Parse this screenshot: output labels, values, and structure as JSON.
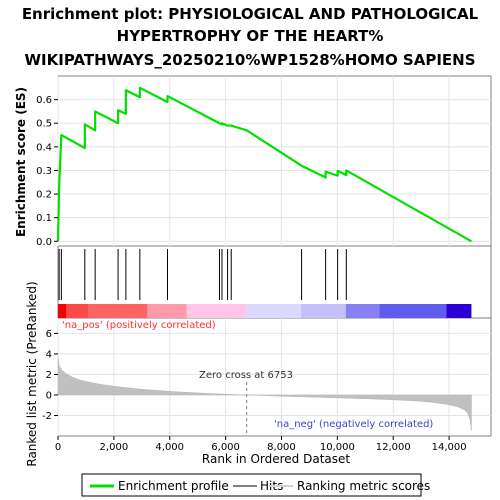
{
  "chart_data": {
    "type": "line",
    "title_lines": [
      "Enrichment plot: PHYSIOLOGICAL AND PATHOLOGICAL",
      "HYPERTROPHY OF THE HEART%",
      "WIKIPATHWAYS_20250210%WP1528%HOMO SAPIENS"
    ],
    "xlabel": "Rank in Ordered Dataset",
    "ylabel_top": "Enrichment score (ES)",
    "ylabel_bottom": "Ranked list metric (PreRanked)",
    "xlim": [
      0,
      15500
    ],
    "x_ticks": [
      "0",
      "2,000",
      "4,000",
      "6,000",
      "8,000",
      "10,000",
      "12,000",
      "14,000"
    ],
    "x_tick_values": [
      0,
      2000,
      4000,
      6000,
      8000,
      10000,
      12000,
      14000
    ],
    "es_ylim": [
      -0.02,
      0.7
    ],
    "es_ticks": [
      "0.0",
      "0.1",
      "0.2",
      "0.3",
      "0.4",
      "0.5",
      "0.6"
    ],
    "es_tick_values": [
      0,
      0.1,
      0.2,
      0.3,
      0.4,
      0.5,
      0.6
    ],
    "metric_ylim": [
      -4,
      7.5
    ],
    "metric_ticks": [
      "-2",
      "0",
      "2",
      "4",
      "6"
    ],
    "metric_tick_values": [
      -2,
      0,
      2,
      4,
      6
    ],
    "total_ranks": 14800,
    "zero_cross_rank": 6753,
    "zero_cross_label": "Zero cross at 6753",
    "pos_label": "'na_pos' (positively correlated)",
    "neg_label": "'na_neg' (negatively correlated)",
    "hits": [
      40,
      120,
      960,
      1330,
      2150,
      2430,
      2930,
      3920,
      5780,
      5870,
      6070,
      6200,
      8720,
      9580,
      10010,
      10320
    ],
    "es_profile": [
      [
        0,
        0
      ],
      [
        40,
        0.23
      ],
      [
        120,
        0.45
      ],
      [
        960,
        0.395
      ],
      [
        960,
        0.495
      ],
      [
        1330,
        0.47
      ],
      [
        1330,
        0.55
      ],
      [
        2150,
        0.5
      ],
      [
        2150,
        0.555
      ],
      [
        2430,
        0.54
      ],
      [
        2430,
        0.64
      ],
      [
        2930,
        0.61
      ],
      [
        2930,
        0.65
      ],
      [
        3920,
        0.59
      ],
      [
        3920,
        0.615
      ],
      [
        5780,
        0.5
      ],
      [
        5870,
        0.495
      ],
      [
        5870,
        0.5
      ],
      [
        6070,
        0.49
      ],
      [
        6200,
        0.49
      ],
      [
        6753,
        0.47
      ],
      [
        8720,
        0.32
      ],
      [
        9580,
        0.27
      ],
      [
        9580,
        0.295
      ],
      [
        10010,
        0.278
      ],
      [
        10010,
        0.298
      ],
      [
        10320,
        0.28
      ],
      [
        10320,
        0.3
      ],
      [
        14800,
        0.0
      ]
    ],
    "metric_profile": [
      [
        0,
        3.6
      ],
      [
        50,
        2.8
      ],
      [
        150,
        2.4
      ],
      [
        300,
        2.05
      ],
      [
        500,
        1.75
      ],
      [
        800,
        1.45
      ],
      [
        1200,
        1.2
      ],
      [
        1600,
        1.0
      ],
      [
        2000,
        0.85
      ],
      [
        2500,
        0.7
      ],
      [
        3000,
        0.55
      ],
      [
        3500,
        0.45
      ],
      [
        4000,
        0.35
      ],
      [
        4500,
        0.27
      ],
      [
        5000,
        0.2
      ],
      [
        5500,
        0.13
      ],
      [
        6000,
        0.07
      ],
      [
        6753,
        0.0
      ],
      [
        7500,
        -0.07
      ],
      [
        8000,
        -0.12
      ],
      [
        9000,
        -0.2
      ],
      [
        10000,
        -0.28
      ],
      [
        11000,
        -0.37
      ],
      [
        12000,
        -0.47
      ],
      [
        12800,
        -0.58
      ],
      [
        13400,
        -0.72
      ],
      [
        13900,
        -0.9
      ],
      [
        14300,
        -1.15
      ],
      [
        14550,
        -1.45
      ],
      [
        14680,
        -1.85
      ],
      [
        14750,
        -2.4
      ],
      [
        14800,
        -3.5
      ]
    ],
    "heat_bands": [
      [
        0,
        300,
        "#f80000"
      ],
      [
        300,
        1100,
        "#fc4a4a"
      ],
      [
        1100,
        3200,
        "#fe6464"
      ],
      [
        3200,
        4600,
        "#ff9aab"
      ],
      [
        4600,
        6753,
        "#ffc6ea"
      ],
      [
        6753,
        8700,
        "#dad8fb"
      ],
      [
        8700,
        10300,
        "#c6c0fa"
      ],
      [
        10300,
        11500,
        "#8880f0"
      ],
      [
        11500,
        13900,
        "#605cee"
      ],
      [
        13900,
        14800,
        "#2c00d2"
      ]
    ],
    "legend": [
      {
        "label": "Enrichment profile",
        "color": "#00e000",
        "kind": "line"
      },
      {
        "label": "Hits",
        "color": "#808080",
        "kind": "line"
      },
      {
        "label": "Ranking metric scores",
        "color": "#d0d0d0",
        "kind": "line"
      }
    ]
  }
}
